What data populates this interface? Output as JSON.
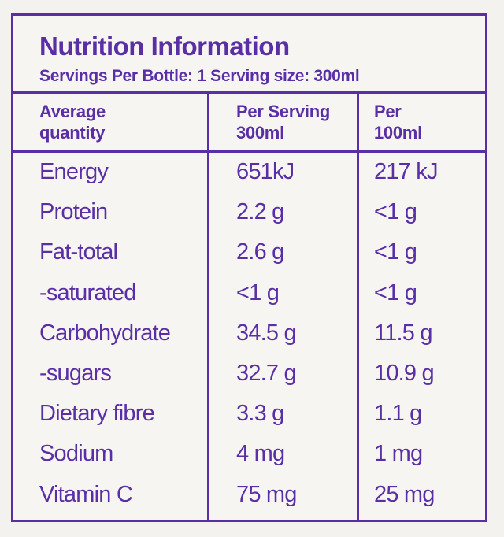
{
  "panel": {
    "title": "Nutrition Information",
    "subtitle": "Servings Per Bottle: 1 Serving size: 300ml"
  },
  "columns": [
    {
      "line1": "Average",
      "line2": "quantity"
    },
    {
      "line1": "Per Serving",
      "line2": "300ml"
    },
    {
      "line1": "Per",
      "line2": "100ml"
    }
  ],
  "rows": [
    {
      "name": "Energy",
      "per_serving": "651kJ",
      "per_100ml": "217 kJ"
    },
    {
      "name": "Protein",
      "per_serving": "2.2 g",
      "per_100ml": "<1 g"
    },
    {
      "name": "Fat-total",
      "per_serving": "2.6 g",
      "per_100ml": "<1 g"
    },
    {
      "name": "-saturated",
      "per_serving": "<1 g",
      "per_100ml": "<1 g"
    },
    {
      "name": "Carbohydrate",
      "per_serving": "34.5 g",
      "per_100ml": "11.5 g"
    },
    {
      "name": "-sugars",
      "per_serving": "32.7 g",
      "per_100ml": "10.9 g"
    },
    {
      "name": "Dietary fibre",
      "per_serving": "3.3 g",
      "per_100ml": "1.1 g"
    },
    {
      "name": "Sodium",
      "per_serving": "4 mg",
      "per_100ml": "1 mg"
    },
    {
      "name": "Vitamin C",
      "per_serving": "75 mg",
      "per_100ml": "25 mg"
    }
  ],
  "colors": {
    "accent": "#5a2fa6",
    "background": "#f4f2ee"
  }
}
